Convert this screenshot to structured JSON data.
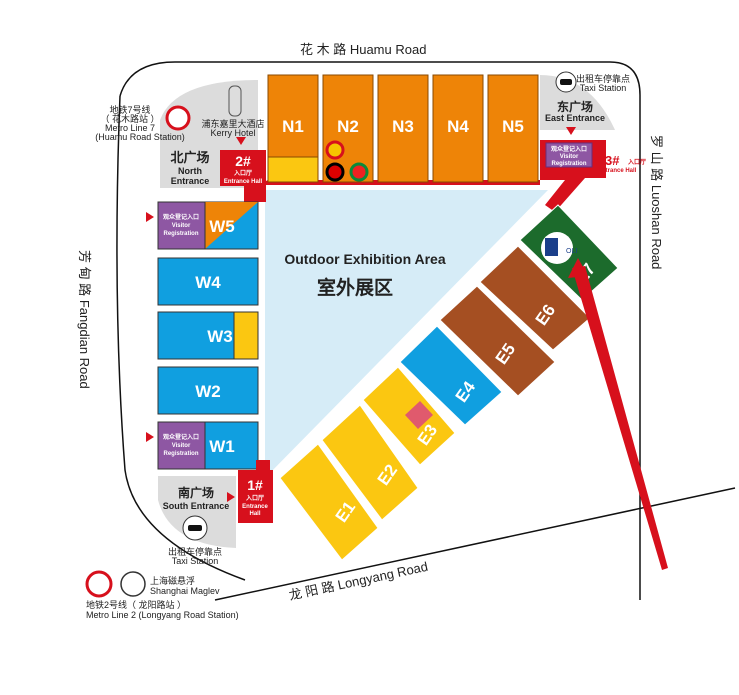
{
  "roads": {
    "north": "花 木 路  Huamu Road",
    "east": "罗 山 路  Luoshan Road",
    "west": "芳 甸 路  Fangdian Road",
    "south": "龙 阳 路  Longyang Road"
  },
  "halls": {
    "north": [
      "N1",
      "N2",
      "N3",
      "N4",
      "N5"
    ],
    "west": [
      "W5",
      "W4",
      "W3",
      "W2",
      "W1"
    ],
    "east": [
      "E1",
      "E2",
      "E3",
      "E4",
      "E5",
      "E6",
      "E7"
    ]
  },
  "outdoor": {
    "en": "Outdoor Exhibition Area",
    "zh": "室外展区"
  },
  "entrances": {
    "north": {
      "zh": "北广场",
      "en1": "North",
      "en2": "Entrance"
    },
    "east": {
      "zh": "东广场",
      "en": "East Entrance"
    },
    "south": {
      "zh": "南广场",
      "en": "South Entrance"
    },
    "hall1": {
      "num": "1#",
      "zh": "入口厅",
      "en1": "Entrance",
      "en2": "Hall"
    },
    "hall2": {
      "num": "2#",
      "zh": "入口厅",
      "en": "Entrance Hall"
    },
    "hall3": {
      "num": "3#",
      "zh": "入口厅",
      "en": "Entrance Hall"
    }
  },
  "visitor_registration": {
    "zh": "观众登记入口",
    "en1": "Visitor",
    "en2": "Registration"
  },
  "landmarks": {
    "kerry_zh": "浦东嘉里大酒店",
    "kerry_en": "Kerry Hotel",
    "metro7_zh1": "地铁7号线",
    "metro7_zh2": "（ 花木路站 ）",
    "metro7_en1": "Metro Line 7",
    "metro7_en2": "(Huamu Road Station)",
    "metro2_zh": "地铁2号线（ 龙阳路站 ）",
    "metro2_en": "Metro Line 2 (Longyang Road Station)",
    "maglev_zh": "上海磁悬浮",
    "maglev_en": "Shanghai Maglev",
    "taxi_zh": "出租车停靠点",
    "taxi_en": "Taxi Station"
  },
  "booth_logo": "OLI",
  "colors": {
    "north_hall": "#ee8407",
    "yellow": "#fbc711",
    "blue": "#109fe0",
    "brown": "#a54f22",
    "green": "#1c6b2c",
    "purple": "#8e57a3",
    "red": "#d7101c",
    "outdoor": "#d6ecf7",
    "plaza": "#dcdcdc"
  }
}
